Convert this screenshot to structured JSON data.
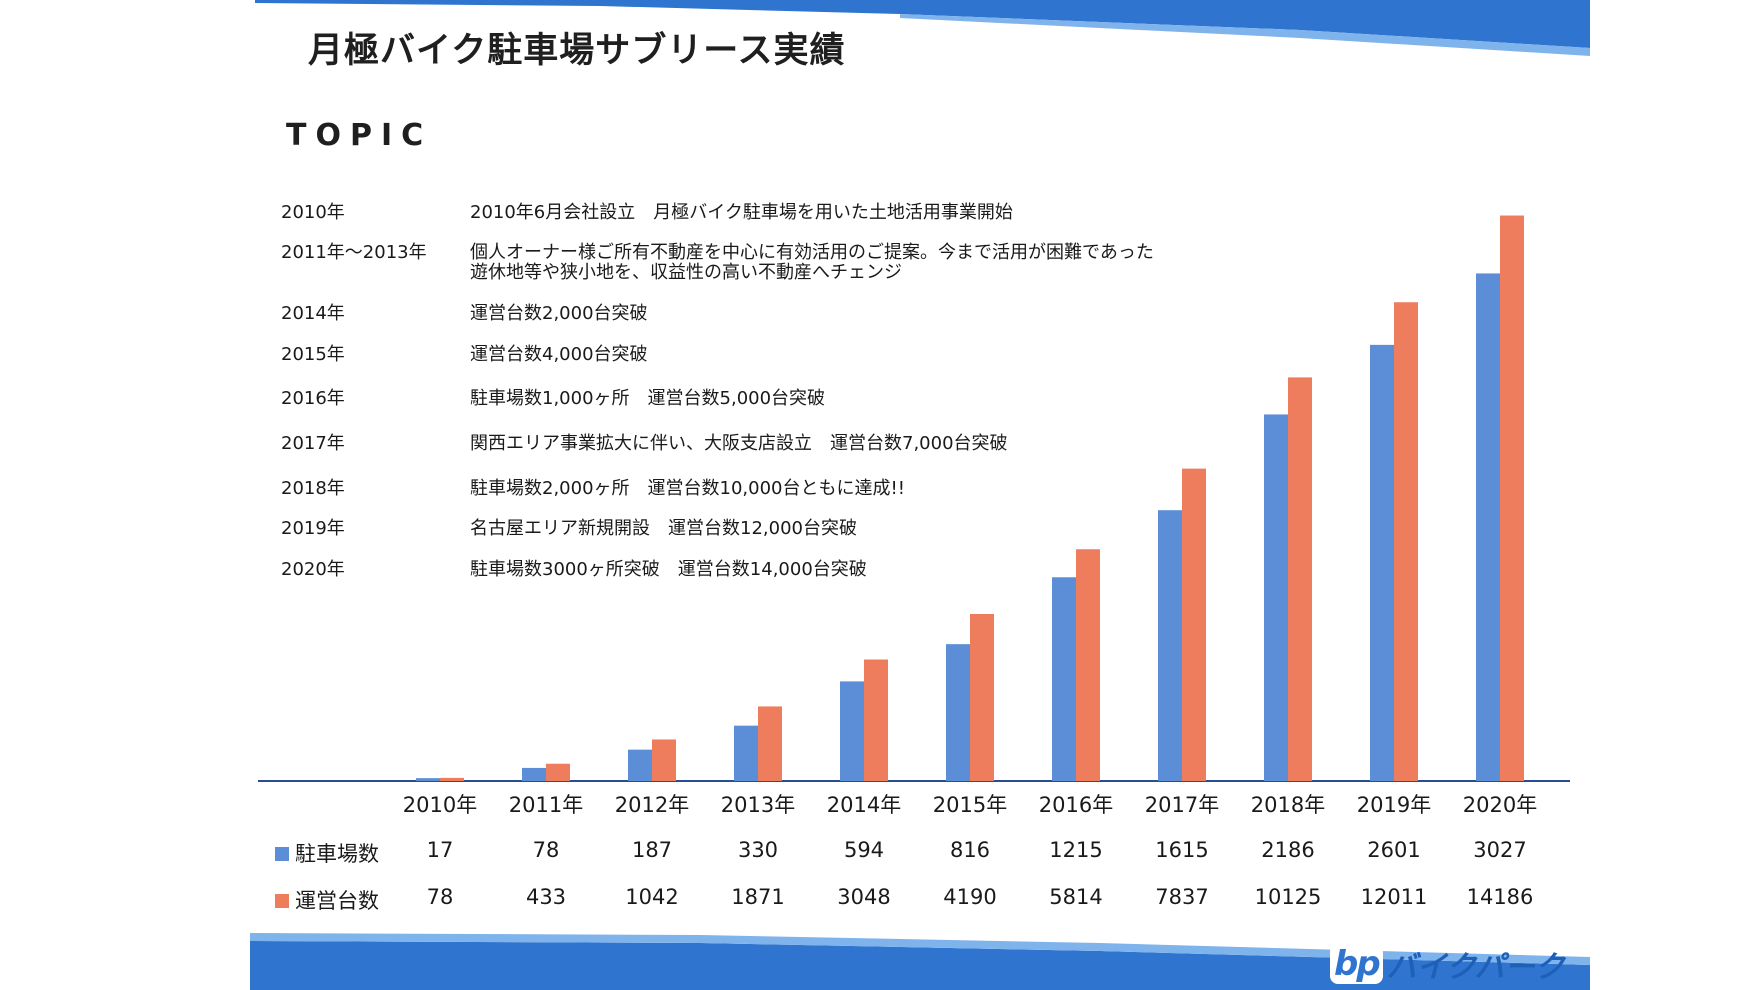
{
  "title": "月極バイク駐車場サブリース実績",
  "topic_heading": "TOPIC",
  "topics": [
    {
      "year": "2010年",
      "text": "2010年6月会社設立　月極バイク駐車場を用いた土地活用事業開始"
    },
    {
      "year": "2011年～2013年",
      "text": "個人オーナー様ご所有不動産を中心に有効活用のご提案。今まで活用が困難であった\n遊休地等や狭小地を、収益性の高い不動産へチェンジ"
    },
    {
      "year": "2014年",
      "text": "運営台数2,000台突破"
    },
    {
      "year": "2015年",
      "text": "運営台数4,000台突破"
    },
    {
      "year": "2016年",
      "text": "駐車場数1,000ヶ所　運営台数5,000台突破"
    },
    {
      "year": "2017年",
      "text": "関西エリア事業拡大に伴い、大阪支店設立　運営台数7,000台突破"
    },
    {
      "year": "2018年",
      "text": "駐車場数2,000ヶ所　運営台数10,000台ともに達成!!"
    },
    {
      "year": "2019年",
      "text": "名古屋エリア新規開設　運営台数12,000台突破"
    },
    {
      "year": "2020年",
      "text": "駐車場数3000ヶ所突破　運営台数14,000台突破"
    }
  ],
  "chart_data": {
    "type": "bar",
    "categories": [
      "2010年",
      "2011年",
      "2012年",
      "2013年",
      "2014年",
      "2015年",
      "2016年",
      "2017年",
      "2018年",
      "2019年",
      "2020年"
    ],
    "series": [
      {
        "name": "駐車場数",
        "color": "#5b8ed6",
        "values": [
          17,
          78,
          187,
          330,
          594,
          816,
          1215,
          1615,
          2186,
          2601,
          3027
        ],
        "scale_max": 3775
      },
      {
        "name": "運営台数",
        "color": "#ee7d5e",
        "values": [
          78,
          433,
          1042,
          1871,
          3048,
          4190,
          5814,
          7837,
          10125,
          12011,
          14186
        ],
        "scale_max": 15880
      }
    ],
    "data_table": true,
    "grid": false,
    "legend_position": "in data table"
  },
  "logo": {
    "mark": "bp",
    "text": "バイクパーク"
  },
  "colors": {
    "band_blue": "#1f6fcf",
    "band_light": "#6aa9ea",
    "axis": "#2a4d8f"
  }
}
